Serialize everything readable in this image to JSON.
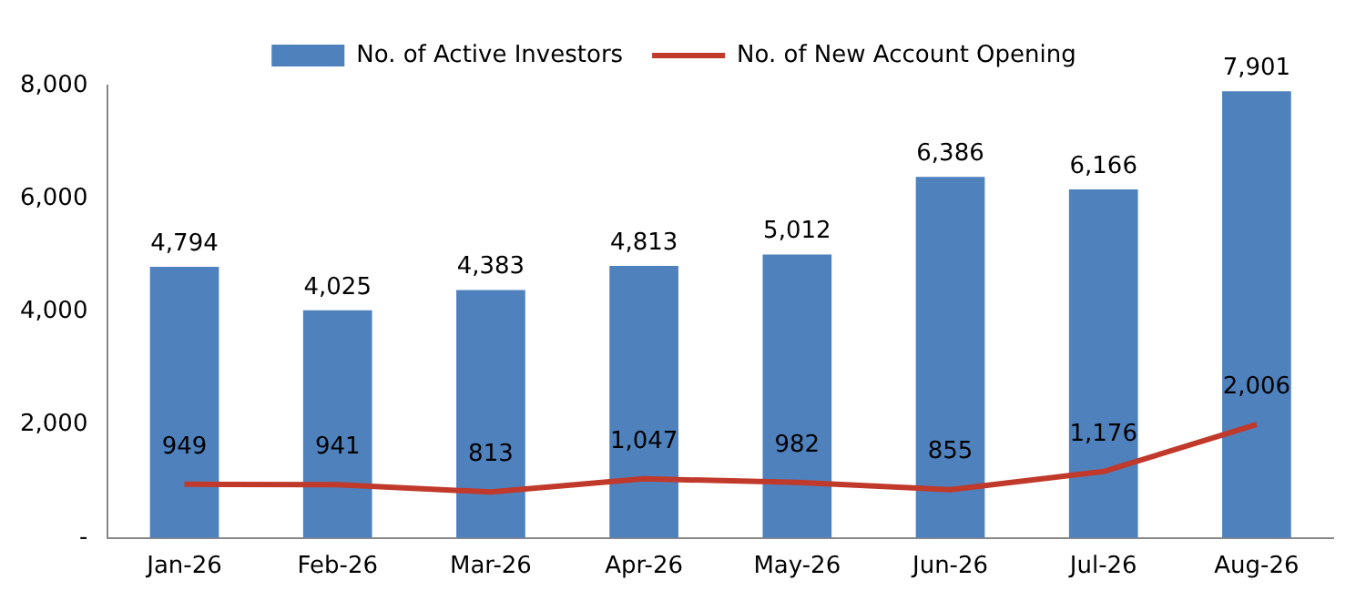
{
  "chart_data": {
    "type": "bar",
    "categories": [
      "Jan-26",
      "Feb-26",
      "Mar-26",
      "Apr-26",
      "May-26",
      "Jun-26",
      "Jul-26",
      "Aug-26"
    ],
    "series": [
      {
        "name": "No. of Active Investors",
        "color": "#4f81bd",
        "values": [
          4794,
          4025,
          4383,
          4813,
          5012,
          6386,
          6166,
          7901
        ],
        "value_labels": [
          "4,794",
          "4,025",
          "4,383",
          "4,813",
          "5,012",
          "6,386",
          "6,166",
          "7,901"
        ]
      },
      {
        "name": "No. of New Account Opening",
        "type": "line",
        "color": "#c0392b",
        "values": [
          949,
          941,
          813,
          1047,
          982,
          855,
          1176,
          2006
        ],
        "value_labels": [
          "949",
          "941",
          "813",
          "1,047",
          "982",
          "855",
          "1,176",
          "2,006"
        ]
      }
    ],
    "ylim": [
      0,
      8000
    ],
    "yticks": [
      {
        "value": 0,
        "label": "-"
      },
      {
        "value": 2000,
        "label": "2,000"
      },
      {
        "value": 4000,
        "label": "4,000"
      },
      {
        "value": 6000,
        "label": "6,000"
      },
      {
        "value": 8000,
        "label": "8,000"
      }
    ],
    "grid": false,
    "legend": "top"
  }
}
